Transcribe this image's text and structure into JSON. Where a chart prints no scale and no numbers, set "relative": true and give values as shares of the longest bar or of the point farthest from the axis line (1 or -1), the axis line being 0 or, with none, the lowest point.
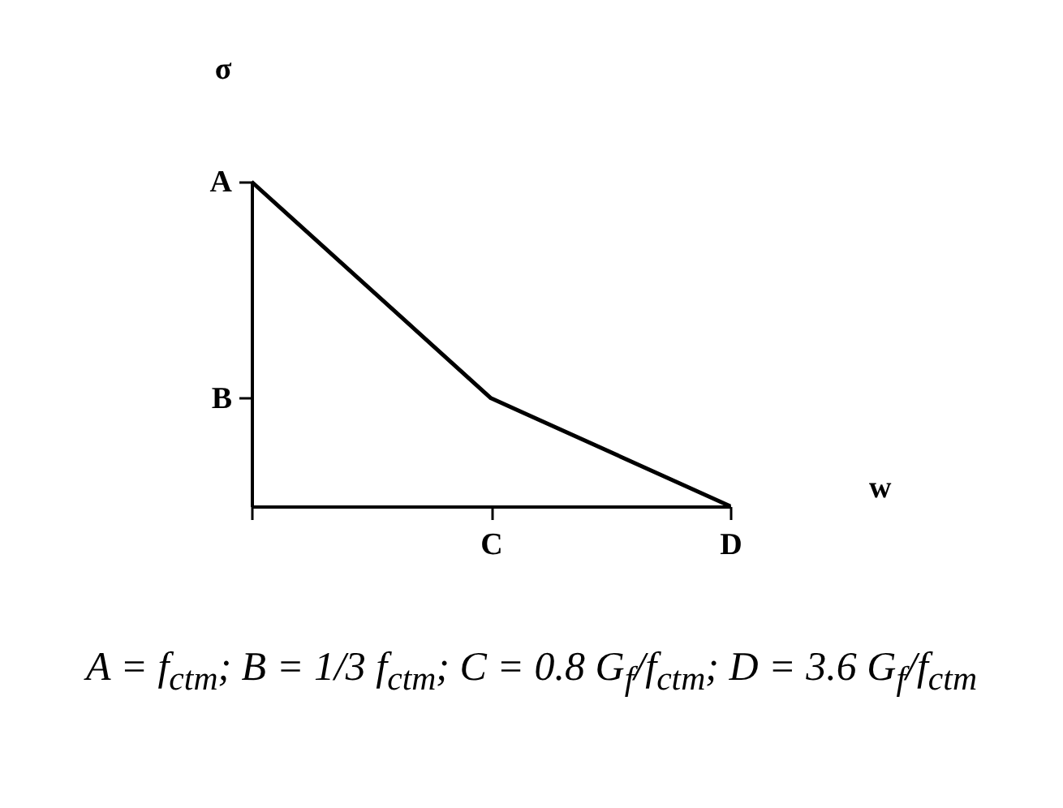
{
  "chart_data": {
    "type": "line",
    "relative": true,
    "xlabel": "w",
    "ylabel": "σ",
    "categories": [
      null,
      "C",
      "D"
    ],
    "series": [
      {
        "color": "#000000",
        "values": [
          1,
          0.333,
          0
        ]
      }
    ],
    "grid": false,
    "marker": "none",
    "line_style": "solid",
    "annotations": [
      "A",
      "B",
      "A = f$_{ctm}$;  B = 1/3 f$_{ctm}$;  C = 0.8 G$_{f}$/f$_{ctm}$;  D = 3.6 G$_{f}$/f$_{ctm}$"
    ]
  }
}
